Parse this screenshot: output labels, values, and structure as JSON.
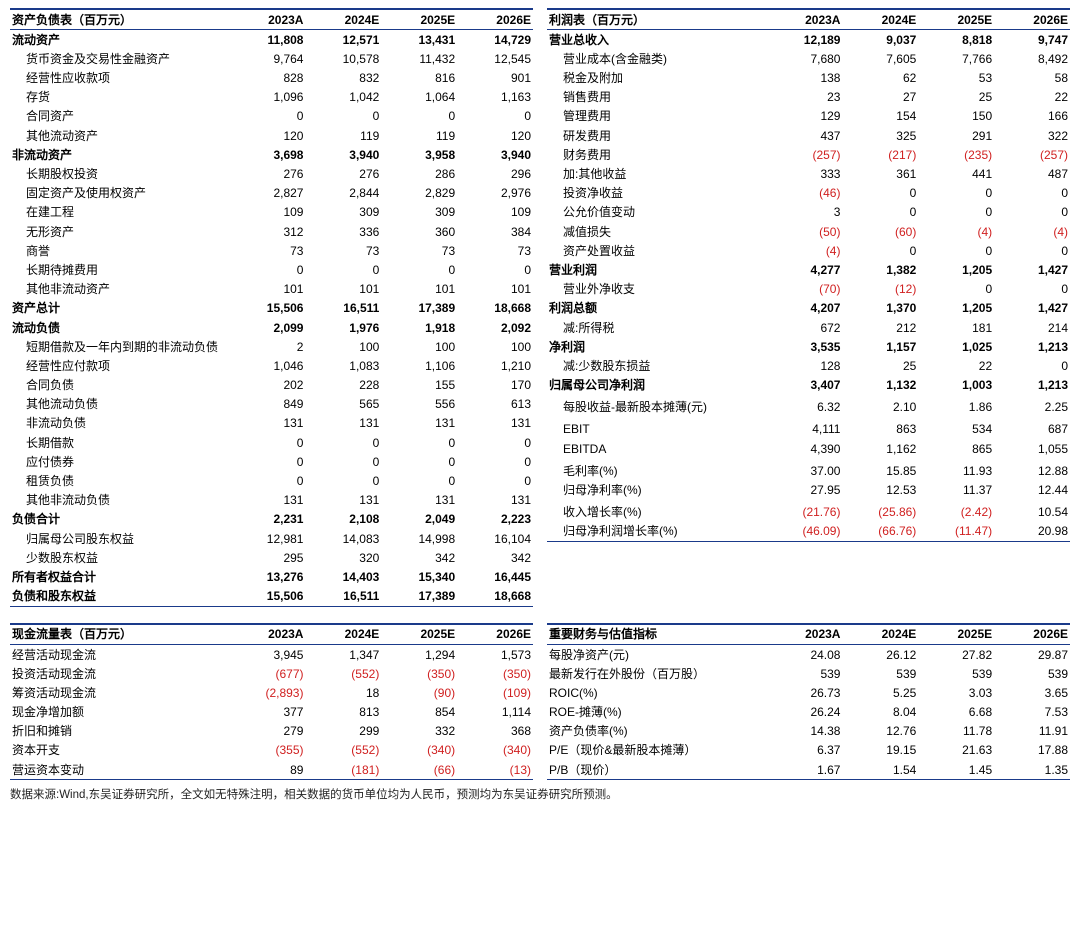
{
  "columns": [
    "2023A",
    "2024E",
    "2025E",
    "2026E"
  ],
  "colors": {
    "rule": "#1a3a8a",
    "neg": "#d02020"
  },
  "balance": {
    "title": "资产负债表（百万元）",
    "rows": [
      {
        "l": "流动资产",
        "v": [
          "11,808",
          "12,571",
          "13,431",
          "14,729"
        ],
        "b": 1
      },
      {
        "l": "货币资金及交易性金融资产",
        "v": [
          "9,764",
          "10,578",
          "11,432",
          "12,545"
        ],
        "i": 1
      },
      {
        "l": "经营性应收款项",
        "v": [
          "828",
          "832",
          "816",
          "901"
        ],
        "i": 1
      },
      {
        "l": "存货",
        "v": [
          "1,096",
          "1,042",
          "1,064",
          "1,163"
        ],
        "i": 1
      },
      {
        "l": "合同资产",
        "v": [
          "0",
          "0",
          "0",
          "0"
        ],
        "i": 1
      },
      {
        "l": "其他流动资产",
        "v": [
          "120",
          "119",
          "119",
          "120"
        ],
        "i": 1
      },
      {
        "l": "非流动资产",
        "v": [
          "3,698",
          "3,940",
          "3,958",
          "3,940"
        ],
        "b": 1
      },
      {
        "l": "长期股权投资",
        "v": [
          "276",
          "276",
          "286",
          "296"
        ],
        "i": 1
      },
      {
        "l": "固定资产及使用权资产",
        "v": [
          "2,827",
          "2,844",
          "2,829",
          "2,976"
        ],
        "i": 1
      },
      {
        "l": "在建工程",
        "v": [
          "109",
          "309",
          "309",
          "109"
        ],
        "i": 1
      },
      {
        "l": "无形资产",
        "v": [
          "312",
          "336",
          "360",
          "384"
        ],
        "i": 1
      },
      {
        "l": "商誉",
        "v": [
          "73",
          "73",
          "73",
          "73"
        ],
        "i": 1
      },
      {
        "l": "长期待摊费用",
        "v": [
          "0",
          "0",
          "0",
          "0"
        ],
        "i": 1
      },
      {
        "l": "其他非流动资产",
        "v": [
          "101",
          "101",
          "101",
          "101"
        ],
        "i": 1
      },
      {
        "l": "资产总计",
        "v": [
          "15,506",
          "16,511",
          "17,389",
          "18,668"
        ],
        "b": 1
      },
      {
        "l": "流动负债",
        "v": [
          "2,099",
          "1,976",
          "1,918",
          "2,092"
        ],
        "b": 1
      },
      {
        "l": "短期借款及一年内到期的非流动负债",
        "v": [
          "2",
          "100",
          "100",
          "100"
        ],
        "i": 1
      },
      {
        "l": "经营性应付款项",
        "v": [
          "1,046",
          "1,083",
          "1,106",
          "1,210"
        ],
        "i": 1
      },
      {
        "l": "合同负债",
        "v": [
          "202",
          "228",
          "155",
          "170"
        ],
        "i": 1
      },
      {
        "l": "其他流动负债",
        "v": [
          "849",
          "565",
          "556",
          "613"
        ],
        "i": 1
      },
      {
        "l": "非流动负债",
        "v": [
          "131",
          "131",
          "131",
          "131"
        ],
        "i": 1
      },
      {
        "l": "长期借款",
        "v": [
          "0",
          "0",
          "0",
          "0"
        ],
        "i": 1
      },
      {
        "l": "应付债券",
        "v": [
          "0",
          "0",
          "0",
          "0"
        ],
        "i": 1
      },
      {
        "l": "租赁负债",
        "v": [
          "0",
          "0",
          "0",
          "0"
        ],
        "i": 1
      },
      {
        "l": "其他非流动负债",
        "v": [
          "131",
          "131",
          "131",
          "131"
        ],
        "i": 1
      },
      {
        "l": "负债合计",
        "v": [
          "2,231",
          "2,108",
          "2,049",
          "2,223"
        ],
        "b": 1
      },
      {
        "l": "归属母公司股东权益",
        "v": [
          "12,981",
          "14,083",
          "14,998",
          "16,104"
        ],
        "i": 1
      },
      {
        "l": "少数股东权益",
        "v": [
          "295",
          "320",
          "342",
          "342"
        ],
        "i": 1
      },
      {
        "l": "所有者权益合计",
        "v": [
          "13,276",
          "14,403",
          "15,340",
          "16,445"
        ],
        "b": 1
      },
      {
        "l": "负债和股东权益",
        "v": [
          "15,506",
          "16,511",
          "17,389",
          "18,668"
        ],
        "b": 1,
        "last": 1
      }
    ]
  },
  "income": {
    "title": "利润表（百万元）",
    "rows": [
      {
        "l": "营业总收入",
        "v": [
          "12,189",
          "9,037",
          "8,818",
          "9,747"
        ],
        "b": 1
      },
      {
        "l": "营业成本(含金融类)",
        "v": [
          "7,680",
          "7,605",
          "7,766",
          "8,492"
        ],
        "i": 1
      },
      {
        "l": "税金及附加",
        "v": [
          "138",
          "62",
          "53",
          "58"
        ],
        "i": 1
      },
      {
        "l": "销售费用",
        "v": [
          "23",
          "27",
          "25",
          "22"
        ],
        "i": 1
      },
      {
        "l": "管理费用",
        "v": [
          "129",
          "154",
          "150",
          "166"
        ],
        "i": 1
      },
      {
        "l": "研发费用",
        "v": [
          "437",
          "325",
          "291",
          "322"
        ],
        "i": 1
      },
      {
        "l": "财务费用",
        "v": [
          "(257)",
          "(217)",
          "(235)",
          "(257)"
        ],
        "i": 1,
        "n": [
          1,
          1,
          1,
          1
        ]
      },
      {
        "l": "加:其他收益",
        "v": [
          "333",
          "361",
          "441",
          "487"
        ],
        "i": 1
      },
      {
        "l": "投资净收益",
        "v": [
          "(46)",
          "0",
          "0",
          "0"
        ],
        "i": 1,
        "n": [
          1,
          0,
          0,
          0
        ]
      },
      {
        "l": "公允价值变动",
        "v": [
          "3",
          "0",
          "0",
          "0"
        ],
        "i": 1
      },
      {
        "l": "减值损失",
        "v": [
          "(50)",
          "(60)",
          "(4)",
          "(4)"
        ],
        "i": 1,
        "n": [
          1,
          1,
          1,
          1
        ]
      },
      {
        "l": "资产处置收益",
        "v": [
          "(4)",
          "0",
          "0",
          "0"
        ],
        "i": 1,
        "n": [
          1,
          0,
          0,
          0
        ]
      },
      {
        "l": "营业利润",
        "v": [
          "4,277",
          "1,382",
          "1,205",
          "1,427"
        ],
        "b": 1
      },
      {
        "l": "营业外净收支",
        "v": [
          "(70)",
          "(12)",
          "0",
          "0"
        ],
        "i": 1,
        "n": [
          1,
          1,
          0,
          0
        ]
      },
      {
        "l": "利润总额",
        "v": [
          "4,207",
          "1,370",
          "1,205",
          "1,427"
        ],
        "b": 1
      },
      {
        "l": "减:所得税",
        "v": [
          "672",
          "212",
          "181",
          "214"
        ],
        "i": 1
      },
      {
        "l": "净利润",
        "v": [
          "3,535",
          "1,157",
          "1,025",
          "1,213"
        ],
        "b": 1
      },
      {
        "l": "减:少数股东损益",
        "v": [
          "128",
          "25",
          "22",
          "0"
        ],
        "i": 1
      },
      {
        "l": "归属母公司净利润",
        "v": [
          "3,407",
          "1,132",
          "1,003",
          "1,213"
        ],
        "b": 1
      },
      {
        "l": "",
        "v": [
          "",
          "",
          "",
          ""
        ]
      },
      {
        "l": "每股收益-最新股本摊薄(元)",
        "v": [
          "6.32",
          "2.10",
          "1.86",
          "2.25"
        ],
        "i": 1
      },
      {
        "l": "",
        "v": [
          "",
          "",
          "",
          ""
        ]
      },
      {
        "l": "EBIT",
        "v": [
          "4,111",
          "863",
          "534",
          "687"
        ],
        "i": 1
      },
      {
        "l": "EBITDA",
        "v": [
          "4,390",
          "1,162",
          "865",
          "1,055"
        ],
        "i": 1
      },
      {
        "l": "",
        "v": [
          "",
          "",
          "",
          ""
        ]
      },
      {
        "l": "毛利率(%)",
        "v": [
          "37.00",
          "15.85",
          "11.93",
          "12.88"
        ],
        "i": 1
      },
      {
        "l": "归母净利率(%)",
        "v": [
          "27.95",
          "12.53",
          "11.37",
          "12.44"
        ],
        "i": 1
      },
      {
        "l": "",
        "v": [
          "",
          "",
          "",
          ""
        ]
      },
      {
        "l": "收入增长率(%)",
        "v": [
          "(21.76)",
          "(25.86)",
          "(2.42)",
          "10.54"
        ],
        "i": 1,
        "n": [
          1,
          1,
          1,
          0
        ]
      },
      {
        "l": "归母净利润增长率(%)",
        "v": [
          "(46.09)",
          "(66.76)",
          "(11.47)",
          "20.98"
        ],
        "i": 1,
        "n": [
          1,
          1,
          1,
          0
        ],
        "last": 1
      }
    ]
  },
  "cashflow": {
    "title": "现金流量表（百万元）",
    "rows": [
      {
        "l": "经营活动现金流",
        "v": [
          "3,945",
          "1,347",
          "1,294",
          "1,573"
        ]
      },
      {
        "l": "投资活动现金流",
        "v": [
          "(677)",
          "(552)",
          "(350)",
          "(350)"
        ],
        "n": [
          1,
          1,
          1,
          1
        ]
      },
      {
        "l": "筹资活动现金流",
        "v": [
          "(2,893)",
          "18",
          "(90)",
          "(109)"
        ],
        "n": [
          1,
          0,
          1,
          1
        ]
      },
      {
        "l": "现金净增加额",
        "v": [
          "377",
          "813",
          "854",
          "1,114"
        ]
      },
      {
        "l": "折旧和摊销",
        "v": [
          "279",
          "299",
          "332",
          "368"
        ]
      },
      {
        "l": "资本开支",
        "v": [
          "(355)",
          "(552)",
          "(340)",
          "(340)"
        ],
        "n": [
          1,
          1,
          1,
          1
        ]
      },
      {
        "l": "营运资本变动",
        "v": [
          "89",
          "(181)",
          "(66)",
          "(13)"
        ],
        "n": [
          0,
          1,
          1,
          1
        ],
        "last": 1
      }
    ]
  },
  "ratios": {
    "title": "重要财务与估值指标",
    "rows": [
      {
        "l": "每股净资产(元)",
        "v": [
          "24.08",
          "26.12",
          "27.82",
          "29.87"
        ]
      },
      {
        "l": "最新发行在外股份（百万股）",
        "v": [
          "539",
          "539",
          "539",
          "539"
        ]
      },
      {
        "l": "ROIC(%)",
        "v": [
          "26.73",
          "5.25",
          "3.03",
          "3.65"
        ]
      },
      {
        "l": "ROE-摊薄(%)",
        "v": [
          "26.24",
          "8.04",
          "6.68",
          "7.53"
        ]
      },
      {
        "l": "资产负债率(%)",
        "v": [
          "14.38",
          "12.76",
          "11.78",
          "11.91"
        ]
      },
      {
        "l": "P/E（现价&最新股本摊薄）",
        "v": [
          "6.37",
          "19.15",
          "21.63",
          "17.88"
        ]
      },
      {
        "l": "P/B（现价）",
        "v": [
          "1.67",
          "1.54",
          "1.45",
          "1.35"
        ],
        "last": 1
      }
    ]
  },
  "footnote": "数据来源:Wind,东吴证券研究所，全文如无特殊注明，相关数据的货币单位均为人民币，预测均为东吴证券研究所预测。"
}
